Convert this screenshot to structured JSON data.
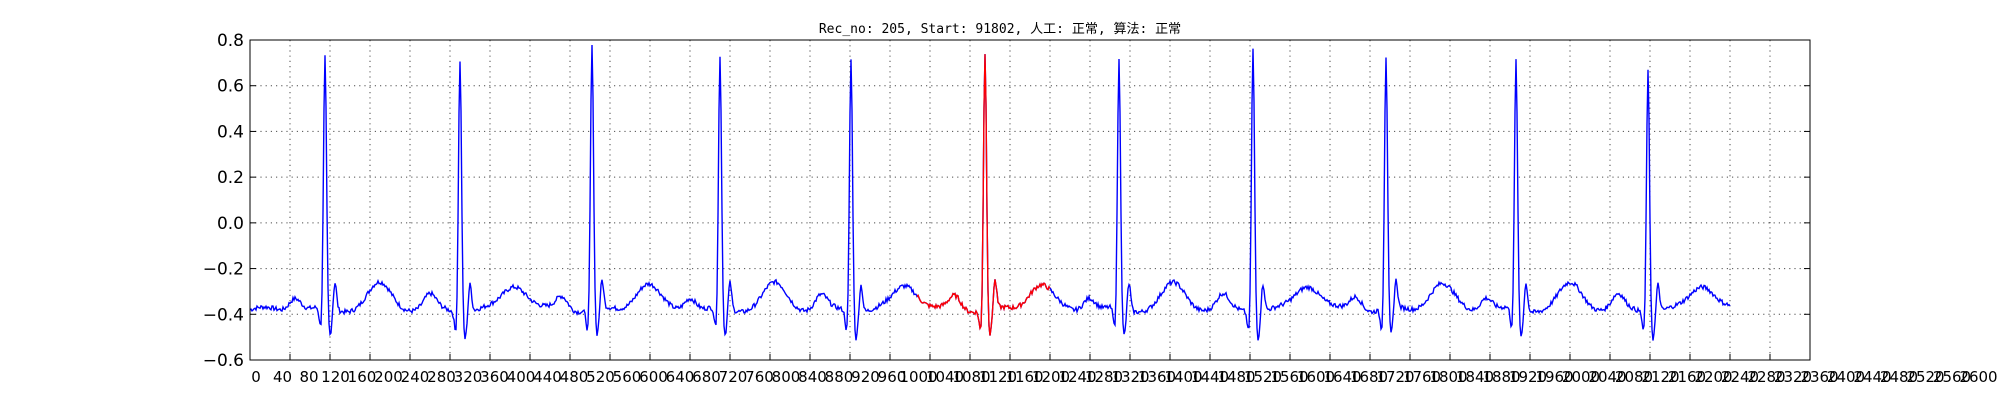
{
  "chart_data": {
    "type": "line",
    "title": "Rec_no: 205, Start: 91802, 人工: 正常, 算法: 正常",
    "xlabel": "",
    "ylabel": "",
    "xlim": [
      0,
      1560
    ],
    "ylim": [
      -0.6,
      0.8
    ],
    "grid": true,
    "y_ticks": [
      -0.6,
      -0.4,
      -0.2,
      0.0,
      0.2,
      0.4,
      0.6,
      0.8
    ],
    "y_tick_labels": [
      "−0.6",
      "−0.4",
      "−0.2",
      "0.0",
      "0.2",
      "0.4",
      "0.6",
      "0.8"
    ],
    "x_tick_labels": [
      "0",
      "40",
      "80",
      "120",
      "160",
      "200",
      "240",
      "280",
      "320",
      "360",
      "400",
      "440",
      "480",
      "520",
      "560",
      "600",
      "640",
      "680",
      "720",
      "760",
      "800",
      "840",
      "880",
      "920",
      "960",
      "1000",
      "1040",
      "1080",
      "1120",
      "1160",
      "1200",
      "1240",
      "1280",
      "1320",
      "1360",
      "1400",
      "1440",
      "1480",
      "1520",
      "1560",
      "1600",
      "1640",
      "1680",
      "1720",
      "1760",
      "1800",
      "1840",
      "1880",
      "1920",
      "1960",
      "2000",
      "2040",
      "2080",
      "2120",
      "2160",
      "2200",
      "2240",
      "2280",
      "2320",
      "2360",
      "2400",
      "2440",
      "2480",
      "2520",
      "2560",
      "2600"
    ],
    "baseline": -0.38,
    "beats": [
      {
        "r": 75,
        "peak": 0.7
      },
      {
        "r": 210,
        "peak": 0.71
      },
      {
        "r": 342,
        "peak": 0.76
      },
      {
        "r": 470,
        "peak": 0.7
      },
      {
        "r": 601,
        "peak": 0.71
      },
      {
        "r": 735,
        "peak": 0.73
      },
      {
        "r": 869,
        "peak": 0.69
      },
      {
        "r": 1003,
        "peak": 0.76
      },
      {
        "r": 1136,
        "peak": 0.71
      },
      {
        "r": 1266,
        "peak": 0.69
      },
      {
        "r": 1398,
        "peak": 0.66
      }
    ],
    "x_end": 1480,
    "series": [
      {
        "color": "#0000ff",
        "range": [
          0,
          1480
        ]
      },
      {
        "color": "#ff0000",
        "range": [
          667,
          800
        ]
      }
    ]
  }
}
